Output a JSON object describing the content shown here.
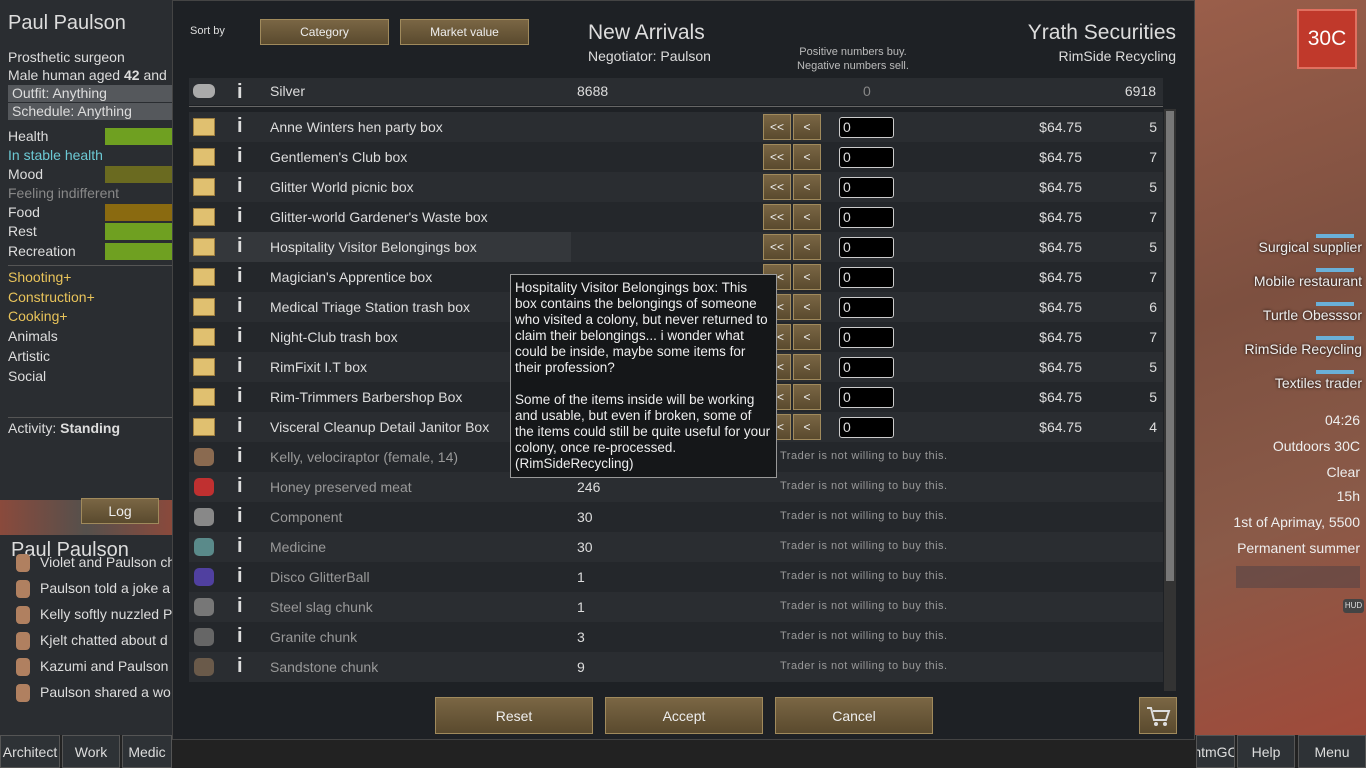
{
  "pawn": {
    "name": "Paul Paulson",
    "title": "Prosthetic surgeon",
    "desc_prefix": "Male human aged",
    "age": 42,
    "desc_suffix": "and",
    "outfit": "Outfit: Anything",
    "schedule": "Schedule: Anything",
    "needs": [
      "Health",
      "In stable health",
      "Mood",
      "Feeling indifferent",
      "Food",
      "Rest",
      "Recreation"
    ],
    "skills": [
      "Shooting+",
      "Construction+",
      "Cooking+",
      "Animals",
      "Artistic",
      "Social"
    ],
    "activity_label": "Activity:",
    "activity": "Standing",
    "log_button": "Log"
  },
  "log": {
    "name": "Paul Paulson",
    "entries": [
      "Violet and Paulson ch",
      "Paulson told a joke a",
      "Kelly softly nuzzled P",
      "Kjelt chatted about d",
      "Kazumi and Paulson",
      "Paulson shared a wo"
    ]
  },
  "bottom_tabs": [
    "Architect",
    "Work",
    "Medic"
  ],
  "trade": {
    "sort_label": "Sort by",
    "sort_buttons": [
      "Category",
      "Market value"
    ],
    "colony_name": "New Arrivals",
    "negotiator": "Negotiator: Paulson",
    "hint": [
      "Positive numbers buy.",
      "Negative numbers sell."
    ],
    "trader_name": "Yrath Securities",
    "trader_kind": "RimSide Recycling",
    "silver": {
      "name": "Silver",
      "colony": 8688,
      "amount": 0,
      "trader": 6918
    },
    "info_icon": "i",
    "transfer_buttons": [
      "<<",
      "<"
    ],
    "tradeable": [
      {
        "name": "Anne Winters hen party box",
        "amount": 0,
        "price": "$64.75",
        "trader": 5
      },
      {
        "name": "Gentlemen's Club box",
        "amount": 0,
        "price": "$64.75",
        "trader": 7
      },
      {
        "name": "Glitter World picnic box",
        "amount": 0,
        "price": "$64.75",
        "trader": 5
      },
      {
        "name": "Glitter-world Gardener's Waste box",
        "amount": 0,
        "price": "$64.75",
        "trader": 7
      },
      {
        "name": "Hospitality Visitor Belongings box",
        "amount": 0,
        "price": "$64.75",
        "trader": 5
      },
      {
        "name": "Magician's Apprentice box",
        "amount": 0,
        "price": "$64.75",
        "trader": 7
      },
      {
        "name": "Medical Triage Station trash box",
        "amount": 0,
        "price": "$64.75",
        "trader": 6
      },
      {
        "name": "Night-Club trash box",
        "amount": 0,
        "price": "$64.75",
        "trader": 7
      },
      {
        "name": "RimFixit I.T box",
        "amount": 0,
        "price": "$64.75",
        "trader": 5
      },
      {
        "name": "Rim-Trimmers Barbershop Box",
        "amount": 0,
        "price": "$64.75",
        "trader": 5
      },
      {
        "name": "Visceral Cleanup Detail Janitor Box",
        "amount": 0,
        "price": "$64.75",
        "trader": 4
      }
    ],
    "not_willing": "Trader is not willing to buy this.",
    "untradeable": [
      {
        "name": "Kelly, velociraptor (female, 14)"
      },
      {
        "name": "Honey preserved meat",
        "colony": 246
      },
      {
        "name": "Component",
        "colony": 30
      },
      {
        "name": "Medicine",
        "colony": 30
      },
      {
        "name": "Disco GlitterBall",
        "colony": 1
      },
      {
        "name": "Steel slag chunk",
        "colony": 1
      },
      {
        "name": "Granite chunk",
        "colony": 3
      },
      {
        "name": "Sandstone chunk",
        "colony": 9
      }
    ],
    "tooltip": [
      "Hospitality Visitor Belongings box: This box contains the belongings of someone who visited a colony, but never returned to claim their belongings... i wonder what could be inside, maybe some items for their profession?",
      "Some of the items inside will be working and usable, but even if broken, some of the items could still be quite useful for your colony, once re-processed. (RimSideRecycling)"
    ],
    "buttons": [
      "Reset",
      "Accept",
      "Cancel"
    ]
  },
  "hud": {
    "temperature": "30C",
    "caravans": [
      "Surgical supplier",
      "Mobile restaurant",
      "Turtle Obesssor",
      "RimSide Recycling",
      "Textiles trader"
    ],
    "time": "04:26",
    "outdoors": "Outdoors 30C",
    "weather": "Clear",
    "hour": "15h",
    "date": "1st of Aprimay, 5500",
    "season": "Permanent summer",
    "hud_icon": "HUD",
    "menu": [
      "ntmGC",
      "Help",
      "Menu"
    ]
  }
}
